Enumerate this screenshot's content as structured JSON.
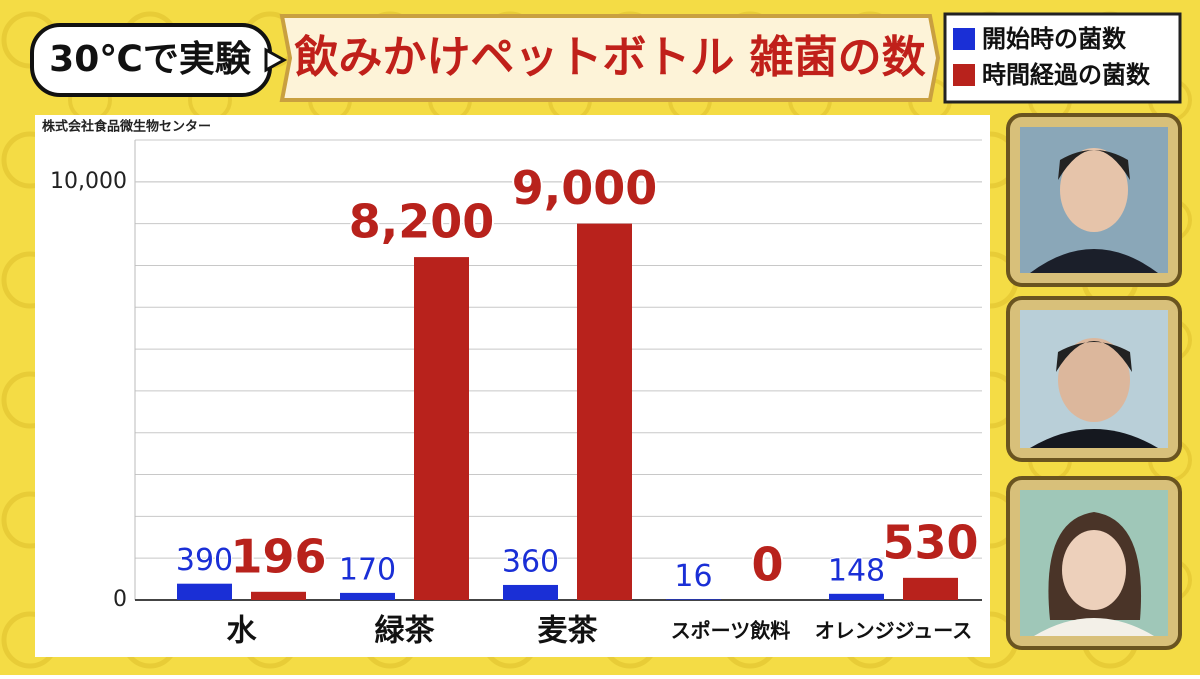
{
  "chart_data": {
    "type": "bar",
    "subtitle": "30℃で実験",
    "title": "飲みかけペットボトル 雑菌の数",
    "source": "株式会社食品微生物センター",
    "categories": [
      "水",
      "緑茶",
      "麦茶",
      "スポーツ飲料",
      "オレンジジュース"
    ],
    "series": [
      {
        "name": "開始時の菌数",
        "color": "#1a2fd6",
        "values": [
          390,
          170,
          360,
          16,
          148
        ]
      },
      {
        "name": "時間経過の菌数",
        "color": "#b8221c",
        "values": [
          196,
          8200,
          9000,
          0,
          530
        ],
        "value_labels": [
          "196",
          "8,200",
          "9,000",
          "0",
          "530"
        ]
      }
    ],
    "ylim": [
      0,
      11000
    ],
    "yticks": [
      0,
      {
        "value": 10000,
        "label": "10,000"
      }
    ],
    "grid": true,
    "grid_interval": 1000,
    "legend": "top-right"
  }
}
